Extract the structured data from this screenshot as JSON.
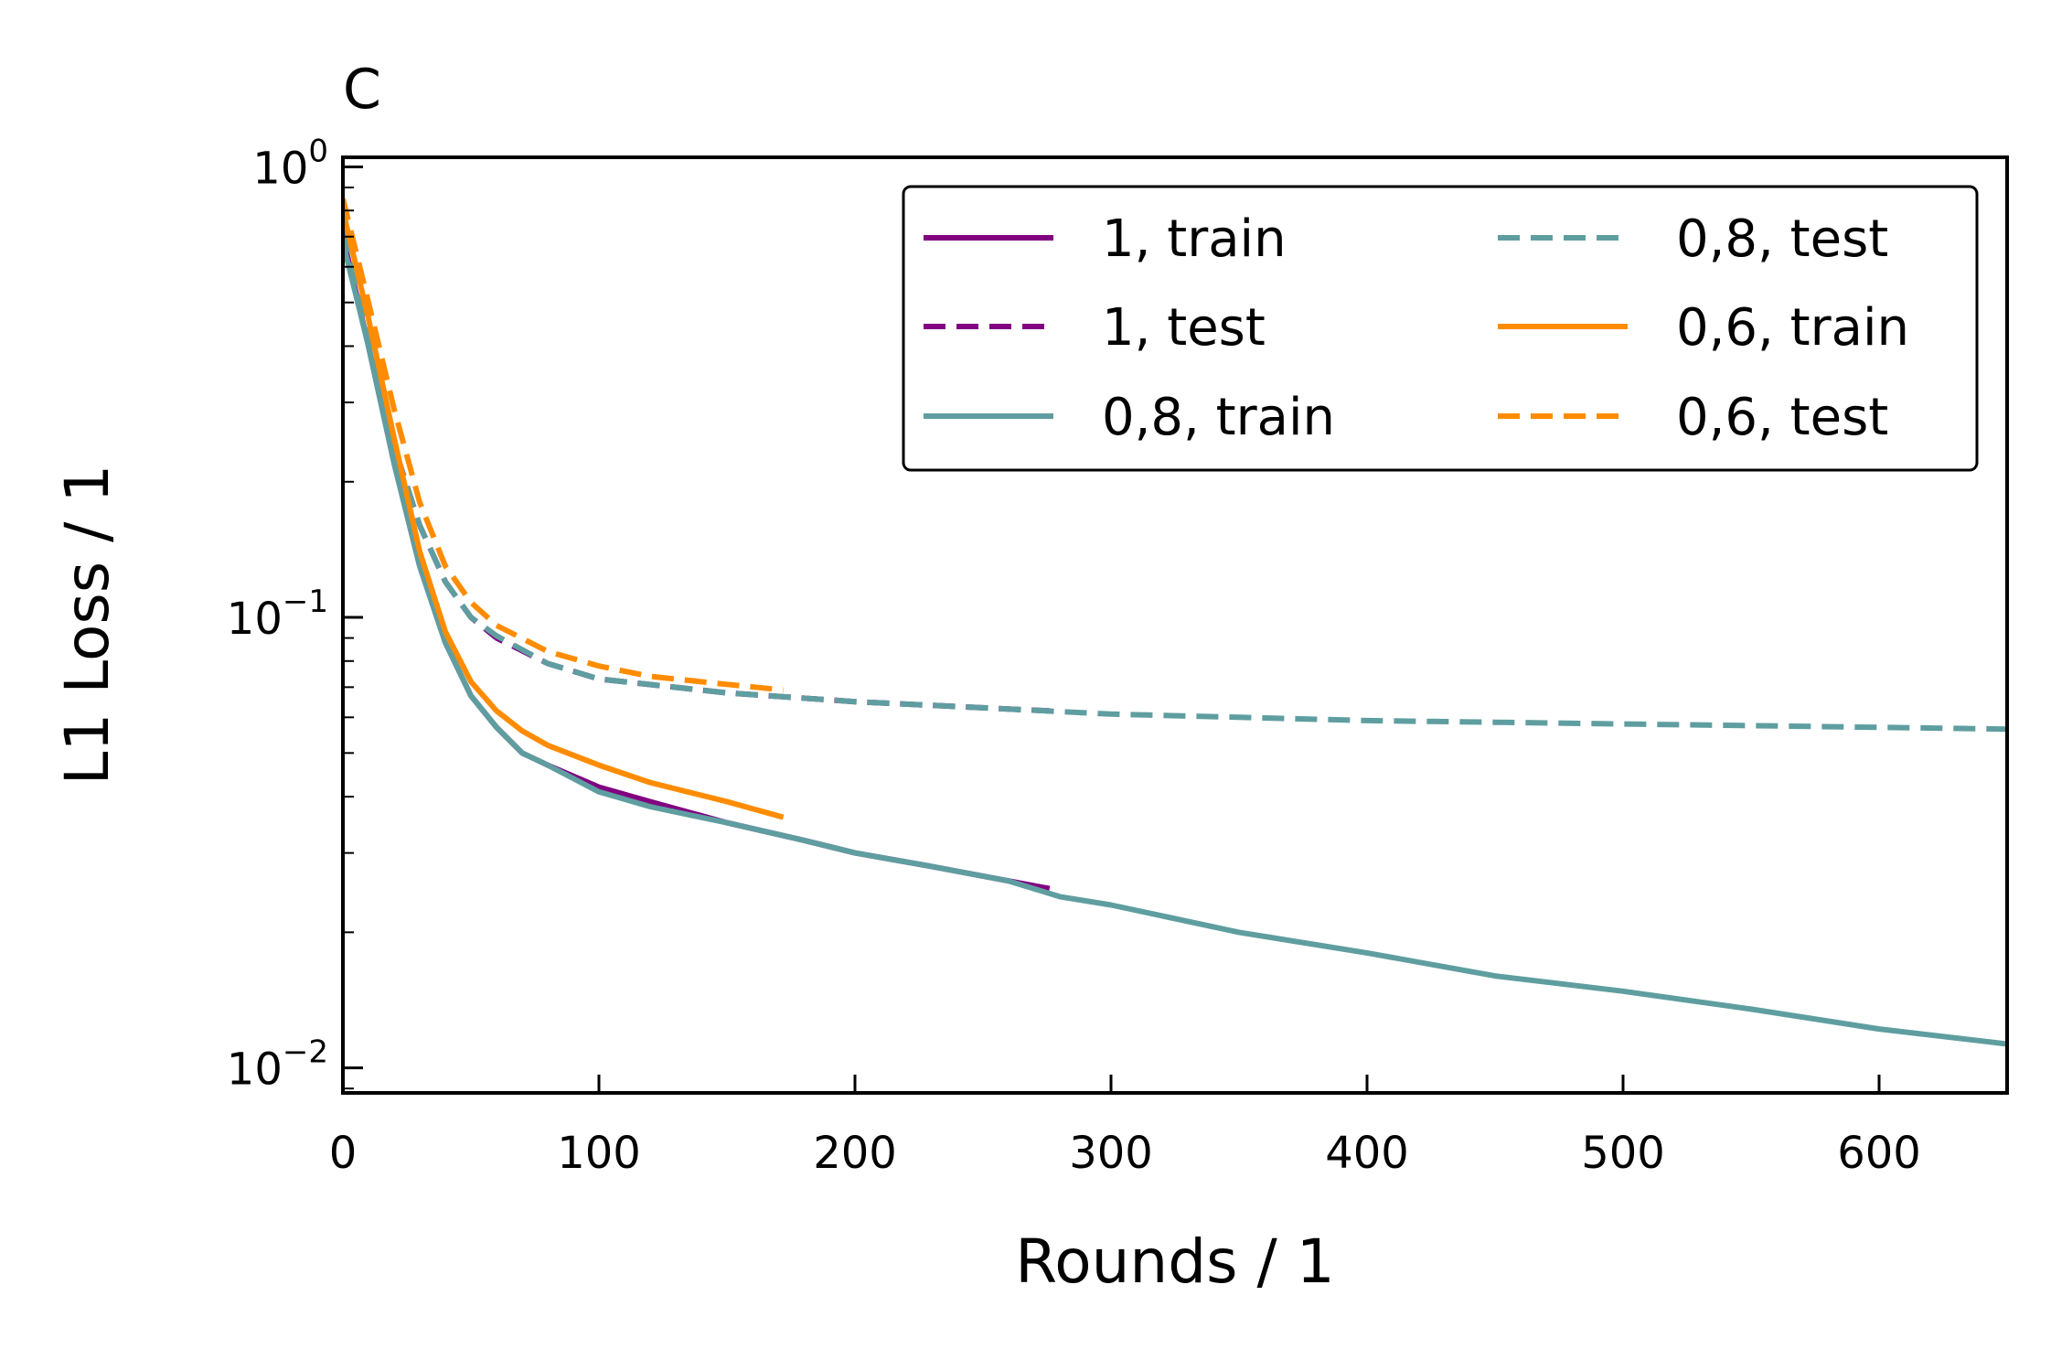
{
  "chart_data": {
    "type": "line",
    "panel_label": "C",
    "xlabel": "Rounds / 1",
    "ylabel": "L1 Loss / 1",
    "xlim": [
      0,
      650
    ],
    "ylim": [
      0.0088,
      1.05
    ],
    "yscale": "log",
    "x_ticks": [
      0,
      100,
      200,
      300,
      400,
      500,
      600
    ],
    "x_tick_labels": [
      "0",
      "100",
      "200",
      "300",
      "400",
      "500",
      "600"
    ],
    "y_ticks": [
      {
        "value": 1,
        "base": "10",
        "exp": "0"
      },
      {
        "value": 0.1,
        "base": "10",
        "exp": "−1"
      },
      {
        "value": 0.01,
        "base": "10",
        "exp": "−2"
      }
    ],
    "grid": false,
    "legend_position": "top-right",
    "legend_columns": 2,
    "series": [
      {
        "name": "1, train",
        "color": "#800080",
        "style": "solid",
        "x": [
          0,
          10,
          20,
          30,
          40,
          50,
          60,
          70,
          80,
          100,
          120,
          150,
          180,
          200,
          230,
          260,
          276
        ],
        "y": [
          0.7,
          0.4,
          0.22,
          0.13,
          0.088,
          0.067,
          0.057,
          0.05,
          0.047,
          0.042,
          0.039,
          0.035,
          0.032,
          0.03,
          0.028,
          0.026,
          0.025
        ]
      },
      {
        "name": "1, test",
        "color": "#800080",
        "style": "dashed",
        "x": [
          0,
          10,
          20,
          30,
          40,
          50,
          60,
          80,
          100,
          150,
          200,
          250,
          276
        ],
        "y": [
          0.72,
          0.42,
          0.24,
          0.16,
          0.12,
          0.1,
          0.09,
          0.079,
          0.073,
          0.068,
          0.065,
          0.063,
          0.062
        ]
      },
      {
        "name": "0,8, train",
        "color": "#5f9ea0",
        "style": "solid",
        "x": [
          0,
          10,
          20,
          30,
          40,
          50,
          60,
          70,
          80,
          100,
          120,
          150,
          180,
          200,
          230,
          260,
          280,
          300,
          350,
          400,
          450,
          500,
          550,
          600,
          650
        ],
        "y": [
          0.68,
          0.4,
          0.22,
          0.13,
          0.088,
          0.067,
          0.057,
          0.05,
          0.047,
          0.041,
          0.038,
          0.035,
          0.032,
          0.03,
          0.028,
          0.026,
          0.024,
          0.023,
          0.02,
          0.018,
          0.016,
          0.0148,
          0.0135,
          0.0122,
          0.0113
        ]
      },
      {
        "name": "0,8, test",
        "color": "#5f9ea0",
        "style": "dashed",
        "x": [
          0,
          10,
          20,
          30,
          40,
          50,
          60,
          80,
          100,
          150,
          200,
          250,
          300,
          350,
          400,
          450,
          500,
          550,
          600,
          650
        ],
        "y": [
          0.72,
          0.42,
          0.24,
          0.16,
          0.12,
          0.1,
          0.091,
          0.079,
          0.073,
          0.068,
          0.065,
          0.063,
          0.061,
          0.06,
          0.059,
          0.0585,
          0.058,
          0.0575,
          0.057,
          0.0565
        ]
      },
      {
        "name": "0,6, train",
        "color": "#ff8c00",
        "style": "solid",
        "x": [
          0,
          10,
          20,
          30,
          40,
          50,
          60,
          70,
          80,
          100,
          120,
          150,
          172
        ],
        "y": [
          0.8,
          0.46,
          0.25,
          0.14,
          0.093,
          0.072,
          0.062,
          0.056,
          0.052,
          0.047,
          0.043,
          0.039,
          0.036
        ]
      },
      {
        "name": "0,6, test",
        "color": "#ff8c00",
        "style": "dashed",
        "x": [
          0,
          10,
          20,
          30,
          40,
          50,
          60,
          80,
          100,
          120,
          150,
          172
        ],
        "y": [
          0.85,
          0.5,
          0.29,
          0.18,
          0.13,
          0.108,
          0.096,
          0.084,
          0.078,
          0.074,
          0.071,
          0.069
        ]
      }
    ]
  }
}
